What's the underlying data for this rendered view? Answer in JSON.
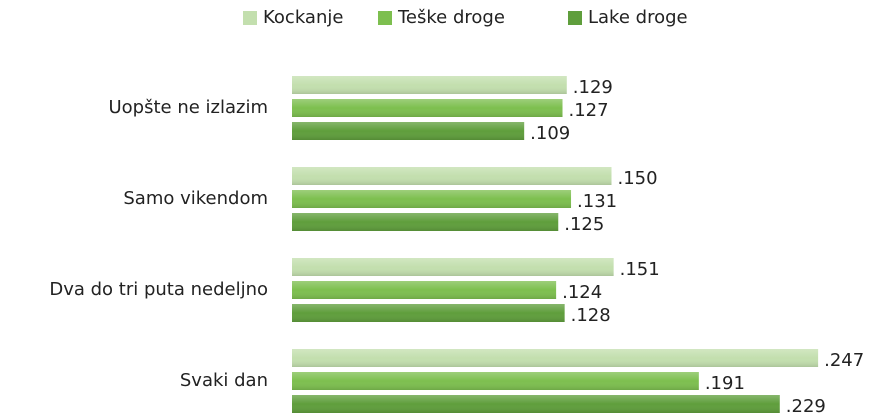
{
  "chart_data": {
    "type": "barh",
    "categories": [
      "Uopšte ne izlazim",
      "Samo vikendom",
      "Dva do tri puta nedeljno",
      "Svaki dan"
    ],
    "series": [
      {
        "name": "Kockanje",
        "color": "#c3dfae",
        "values": [
          0.129,
          0.15,
          0.151,
          0.247
        ],
        "value_labels": [
          ".129",
          ".150",
          ".151",
          ".247"
        ]
      },
      {
        "name": "Teške droge",
        "color": "#7dbf4f",
        "values": [
          0.127,
          0.131,
          0.124,
          0.191
        ],
        "value_labels": [
          ".127",
          ".131",
          ".124",
          ".191"
        ]
      },
      {
        "name": "Lake droge",
        "color": "#5f9e3c",
        "values": [
          0.109,
          0.125,
          0.128,
          0.229
        ],
        "value_labels": [
          ".109",
          ".125",
          ".128",
          ".229"
        ]
      }
    ],
    "xlim": [
      0,
      0.25
    ]
  }
}
